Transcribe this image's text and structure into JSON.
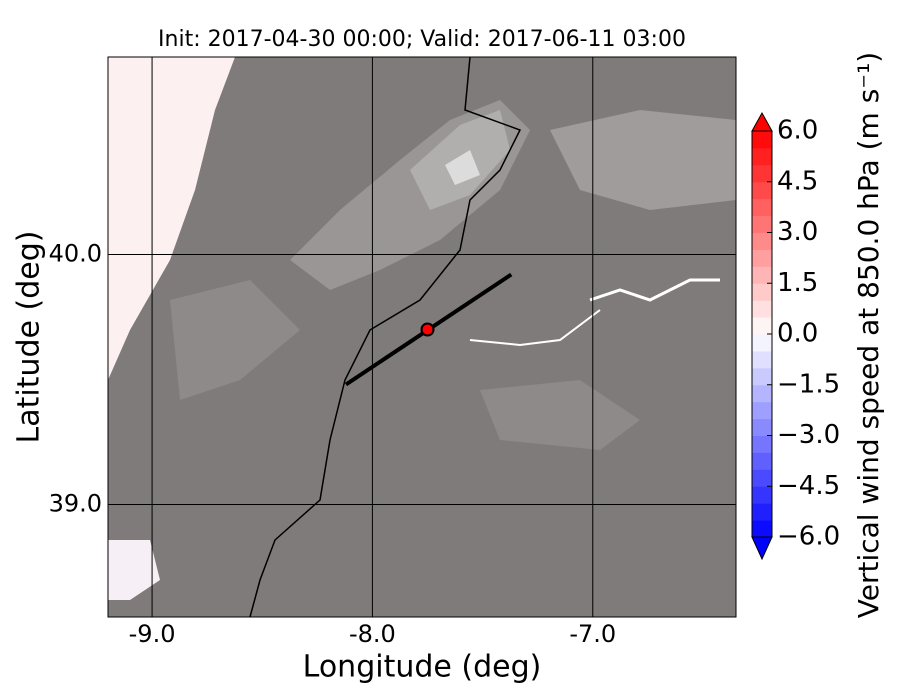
{
  "chart_data": {
    "type": "map",
    "title": "Init: 2017-04-30 00:00; Valid: 2017-06-11 03:00",
    "xlabel": "Longitude (deg)",
    "ylabel": "Latitude (deg)",
    "xlim": [
      -9.2,
      -6.35
    ],
    "ylim": [
      38.55,
      40.79
    ],
    "xticks": [
      {
        "value": -9,
        "label": "-9.0"
      },
      {
        "value": -8,
        "label": "-8.0"
      },
      {
        "value": -7,
        "label": "-7.0"
      }
    ],
    "yticks": [
      {
        "value": 39,
        "label": "39.0"
      },
      {
        "value": 40,
        "label": "40.0"
      }
    ],
    "grid": true,
    "transect": {
      "lon": [
        -8.12,
        -7.37
      ],
      "lat": [
        39.48,
        39.92
      ],
      "color": "#000000"
    },
    "point": {
      "lon": -7.75,
      "lat": 39.7,
      "color": "#ff0000"
    },
    "colorbar": {
      "label": "Vertical wind speed at 850.0 hPa (m s⁻¹)",
      "lim": [
        -6,
        6
      ],
      "colors": [
        "#0000ff",
        "#ffffff",
        "#ff0000"
      ],
      "ticks": [
        {
          "value": 6,
          "label": "6.0"
        },
        {
          "value": 4.5,
          "label": "4.5"
        },
        {
          "value": 3,
          "label": "3.0"
        },
        {
          "value": 1.5,
          "label": "1.5"
        },
        {
          "value": 0,
          "label": "0.0"
        },
        {
          "value": -1.5,
          "label": "−1.5"
        },
        {
          "value": -3,
          "label": "−3.0"
        },
        {
          "value": -4.5,
          "label": "−4.5"
        },
        {
          "value": -6,
          "label": "−6.0"
        }
      ]
    }
  }
}
